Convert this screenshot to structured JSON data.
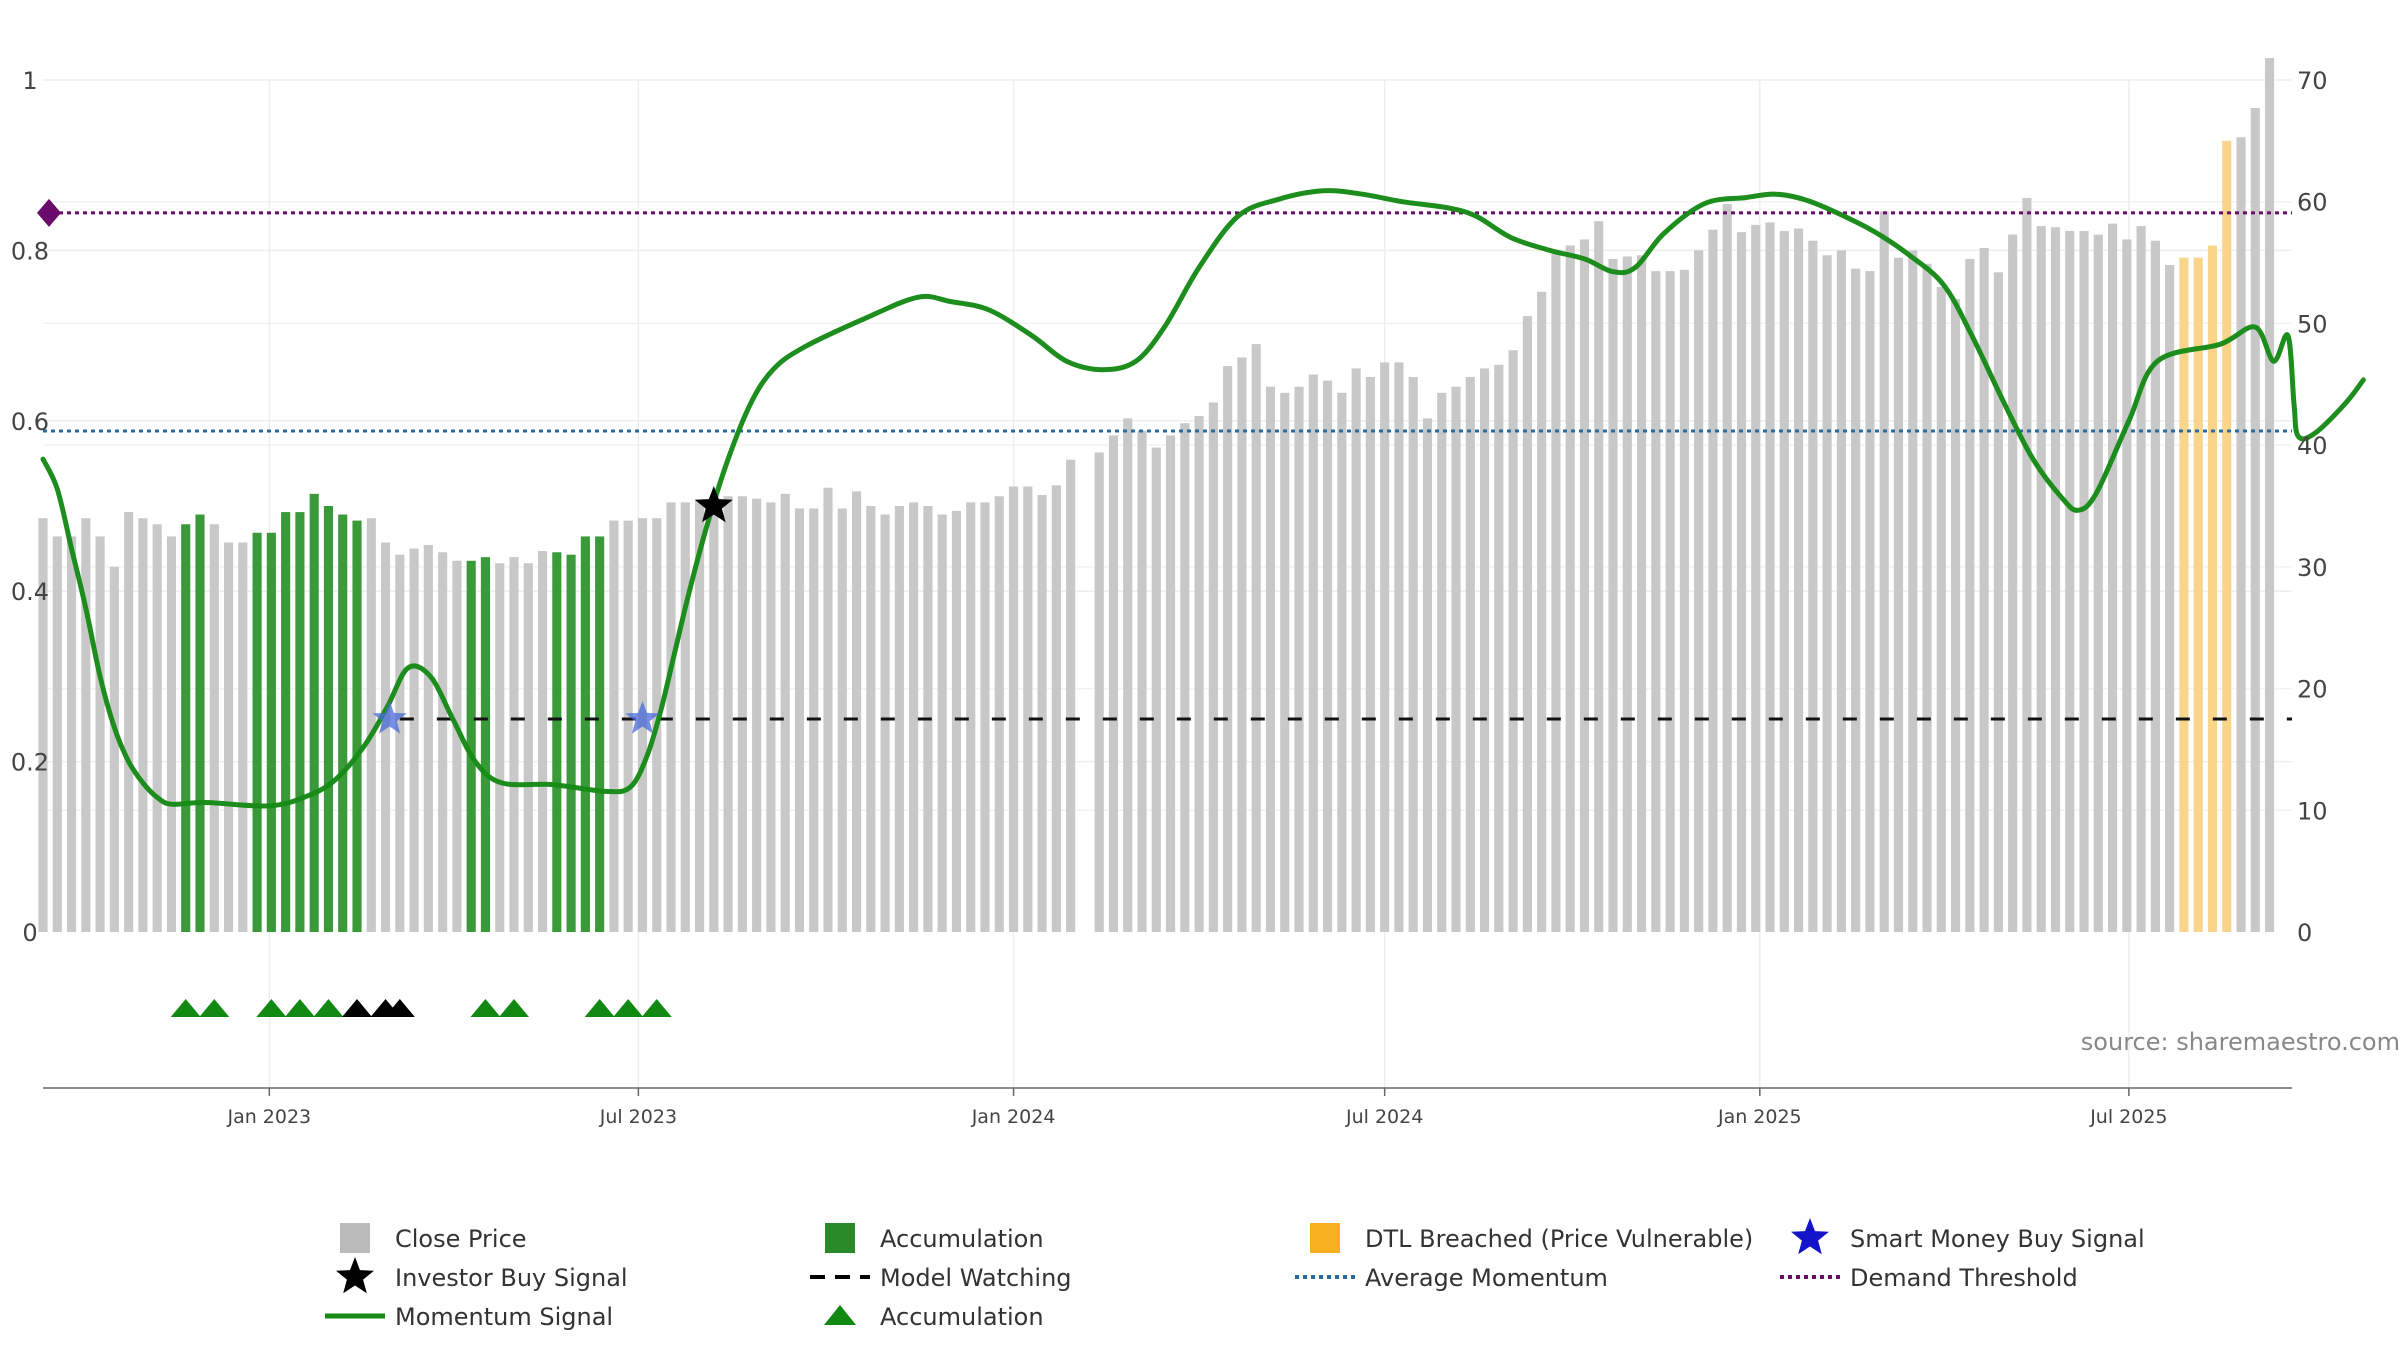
{
  "chart_data": {
    "type": "bar",
    "source": "source: sharemaestro.com",
    "x_ticks": [
      "Jan 2023",
      "Jul 2023",
      "Jan 2024",
      "Jul 2024",
      "Jan 2025",
      "Jul 2025"
    ],
    "x_range": [
      "2022-09-12",
      "2025-09-19"
    ],
    "left_axis": {
      "ticks": [
        "0",
        "0.2",
        "0.4",
        "0.6",
        "0.8",
        "1"
      ],
      "range": [
        0,
        1
      ]
    },
    "right_axis": {
      "ticks": [
        "0",
        "10",
        "20",
        "30",
        "40",
        "50",
        "60",
        "70"
      ],
      "range": [
        0,
        70
      ]
    },
    "colors": {
      "close": "#c8c8c8",
      "accumulation": "#3a9a3a",
      "dtl": "#f9d58c",
      "momentum": "#168a16",
      "avg": "#2a6a9c",
      "demand": "#6a0a6a",
      "watch": "#111111",
      "smart": "#1414c8"
    },
    "close_price_weeks_start": "2022-09-12",
    "close_price": [
      34,
      32.5,
      32.5,
      34,
      32.5,
      30,
      34.5,
      34,
      33.5,
      32.5,
      33.5,
      34.3,
      33.5,
      32,
      32,
      32.8,
      32.8,
      34.5,
      34.5,
      36,
      35,
      34.3,
      33.8,
      34,
      32,
      31,
      31.5,
      31.8,
      31.2,
      30.5,
      30.5,
      30.8,
      30.3,
      30.8,
      30.3,
      31.3,
      31.2,
      31,
      32.5,
      32.5,
      33.8,
      33.8,
      34,
      34,
      35.3,
      35.3,
      35.5,
      35.5,
      35.8,
      35.8,
      35.6,
      35.3,
      36,
      34.8,
      34.8,
      36.5,
      34.8,
      36.2,
      35,
      34.3,
      35,
      35.3,
      35,
      34.3,
      34.6,
      35.3,
      35.3,
      35.8,
      36.6,
      36.6,
      35.9,
      36.7,
      38.8,
      0,
      39.4,
      40.8,
      42.2,
      41.2,
      39.8,
      40.8,
      41.8,
      42.4,
      43.5,
      46.5,
      47.2,
      48.3,
      44.8,
      44.3,
      44.8,
      45.8,
      45.3,
      44.3,
      46.3,
      45.6,
      46.8,
      46.8,
      45.6,
      42.2,
      44.3,
      44.8,
      45.6,
      46.3,
      46.6,
      47.8,
      50.6,
      52.6,
      56,
      56.4,
      56.9,
      58.4,
      55.3,
      55.5,
      55.6,
      54.3,
      54.3,
      54.4,
      56,
      57.7,
      59.8,
      57.5,
      58.1,
      58.3,
      57.6,
      57.8,
      56.8,
      55.6,
      56,
      54.5,
      54.3,
      59.2,
      55.4,
      56,
      54.9,
      53,
      52,
      55.3,
      56.2,
      54.2,
      57.3,
      60.3,
      58,
      57.9,
      57.6,
      57.6,
      57.3,
      58.2,
      56.9,
      58,
      56.8,
      54.8,
      55.4,
      55.4,
      56.4,
      65,
      65.3,
      67.7,
      71.8
    ],
    "accumulation_weeks": [
      10,
      11,
      15,
      16,
      17,
      18,
      19,
      20,
      21,
      22,
      30,
      31,
      36,
      37,
      38,
      39
    ],
    "dtl_breached_weeks": [
      150,
      151,
      152,
      153
    ],
    "momentum": [
      [
        "2022-09-12",
        0.555
      ],
      [
        "2022-09-19",
        0.52
      ],
      [
        "2022-09-26",
        0.45
      ],
      [
        "2022-10-03",
        0.38
      ],
      [
        "2022-10-10",
        0.3
      ],
      [
        "2022-10-17",
        0.24
      ],
      [
        "2022-10-24",
        0.2
      ],
      [
        "2022-10-31",
        0.175
      ],
      [
        "2022-11-07",
        0.158
      ],
      [
        "2022-11-14",
        0.15
      ],
      [
        "2022-12-01",
        0.152
      ],
      [
        "2023-01-01",
        0.148
      ],
      [
        "2023-01-20",
        0.16
      ],
      [
        "2023-02-03",
        0.18
      ],
      [
        "2023-02-17",
        0.22
      ],
      [
        "2023-02-28",
        0.265
      ],
      [
        "2023-03-10",
        0.31
      ],
      [
        "2023-03-21",
        0.3
      ],
      [
        "2023-04-01",
        0.25
      ],
      [
        "2023-04-12",
        0.2
      ],
      [
        "2023-04-25",
        0.175
      ],
      [
        "2023-05-20",
        0.173
      ],
      [
        "2023-06-15",
        0.165
      ],
      [
        "2023-06-27",
        0.17
      ],
      [
        "2023-07-05",
        0.205
      ],
      [
        "2023-07-12",
        0.26
      ],
      [
        "2023-07-19",
        0.33
      ],
      [
        "2023-07-26",
        0.4
      ],
      [
        "2023-08-04",
        0.48
      ],
      [
        "2023-08-14",
        0.555
      ],
      [
        "2023-08-25",
        0.62
      ],
      [
        "2023-09-05",
        0.66
      ],
      [
        "2023-09-20",
        0.686
      ],
      [
        "2023-10-20",
        0.72
      ],
      [
        "2023-11-15",
        0.745
      ],
      [
        "2023-12-01",
        0.74
      ],
      [
        "2023-12-20",
        0.73
      ],
      [
        "2024-01-10",
        0.7
      ],
      [
        "2024-01-27",
        0.67
      ],
      [
        "2024-02-14",
        0.66
      ],
      [
        "2024-03-01",
        0.67
      ],
      [
        "2024-03-15",
        0.71
      ],
      [
        "2024-04-01",
        0.78
      ],
      [
        "2024-04-20",
        0.84
      ],
      [
        "2024-05-10",
        0.86
      ],
      [
        "2024-06-01",
        0.87
      ],
      [
        "2024-06-20",
        0.866
      ],
      [
        "2024-07-10",
        0.857
      ],
      [
        "2024-08-01",
        0.85
      ],
      [
        "2024-08-15",
        0.84
      ],
      [
        "2024-09-01",
        0.815
      ],
      [
        "2024-09-20",
        0.8
      ],
      [
        "2024-10-07",
        0.79
      ],
      [
        "2024-10-21",
        0.775
      ],
      [
        "2024-11-01",
        0.78
      ],
      [
        "2024-11-15",
        0.82
      ],
      [
        "2024-12-05",
        0.855
      ],
      [
        "2024-12-25",
        0.862
      ],
      [
        "2025-01-09",
        0.866
      ],
      [
        "2025-01-25",
        0.858
      ],
      [
        "2025-02-15",
        0.836
      ],
      [
        "2025-03-01",
        0.818
      ],
      [
        "2025-03-15",
        0.795
      ],
      [
        "2025-04-01",
        0.76
      ],
      [
        "2025-04-15",
        0.7
      ],
      [
        "2025-05-01",
        0.62
      ],
      [
        "2025-05-15",
        0.555
      ],
      [
        "2025-05-29",
        0.51
      ],
      [
        "2025-06-06",
        0.495
      ],
      [
        "2025-06-15",
        0.515
      ],
      [
        "2025-07-01",
        0.6
      ],
      [
        "2025-07-15",
        0.67
      ],
      [
        "2025-08-15",
        0.69
      ],
      [
        "2025-09-01",
        0.71
      ],
      [
        "2025-09-10",
        0.67
      ],
      [
        "2025-09-17",
        0.7
      ],
      [
        "2025-09-20",
        0.62
      ],
      [
        "2025-09-22",
        0.582
      ],
      [
        "2025-09-30",
        0.585
      ],
      [
        "2025-10-15",
        0.62
      ],
      [
        "2025-10-24",
        0.648
      ]
    ],
    "average_momentum": 0.588,
    "demand_threshold": 0.844,
    "model_watching_level": 0.25,
    "model_watching_from": "2023-03-06",
    "investor_buy_signal": {
      "date": "2023-08-07",
      "value": 0.5
    },
    "smart_money_buy_signal": [
      {
        "date": "2023-03-01",
        "value": 0.25
      },
      {
        "date": "2023-07-03",
        "value": 0.25
      }
    ],
    "accumulation_markers": [
      "2022-11-21",
      "2022-12-05",
      "2023-01-02",
      "2023-01-16",
      "2023-01-30",
      "2023-04-17",
      "2023-05-01",
      "2023-06-12",
      "2023-06-26",
      "2023-07-10"
    ],
    "investor_markers": [
      "2023-02-13",
      "2023-02-27",
      "2023-03-06"
    ]
  },
  "legend": [
    {
      "label": "Close Price",
      "icon": "square",
      "color": "#bbbbbb"
    },
    {
      "label": "Accumulation",
      "icon": "square",
      "color": "#2a8a2a"
    },
    {
      "label": "DTL Breached (Price Vulnerable)",
      "icon": "square",
      "color": "#f9b020"
    },
    {
      "label": "Smart Money Buy Signal",
      "icon": "star",
      "color": "#1414c8"
    },
    {
      "label": "Investor Buy Signal",
      "icon": "star",
      "color": "#000000"
    },
    {
      "label": "Model Watching",
      "icon": "dashed-line",
      "color": "#000000"
    },
    {
      "label": "Average Momentum",
      "icon": "dotted-line",
      "color": "#2a6a9c"
    },
    {
      "label": "Demand Threshold",
      "icon": "dotted-line",
      "color": "#6a0a6a"
    },
    {
      "label": "Momentum Signal",
      "icon": "solid-line",
      "color": "#168a16"
    },
    {
      "label": "Accumulation",
      "icon": "triangle",
      "color": "#118811"
    }
  ]
}
